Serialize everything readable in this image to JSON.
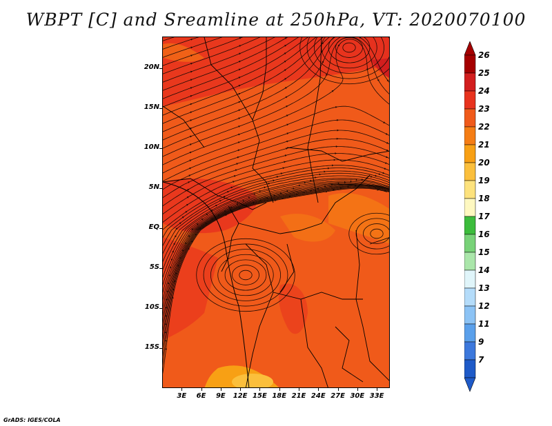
{
  "title": "WBPT [C] and Sreamline at 250hPa, VT: 2020070100",
  "footer": "GrADS: IGES/COLA",
  "map": {
    "lat_labels": [
      {
        "text": "20N",
        "lat": 20
      },
      {
        "text": "15N",
        "lat": 15
      },
      {
        "text": "10N",
        "lat": 10
      },
      {
        "text": "5N",
        "lat": 5
      },
      {
        "text": "EQ",
        "lat": 0
      },
      {
        "text": "5S",
        "lat": -5
      },
      {
        "text": "10S",
        "lat": -10
      },
      {
        "text": "15S",
        "lat": -15
      }
    ],
    "lon_labels": [
      {
        "text": "3E",
        "lon": 3
      },
      {
        "text": "6E",
        "lon": 6
      },
      {
        "text": "9E",
        "lon": 9
      },
      {
        "text": "12E",
        "lon": 12
      },
      {
        "text": "15E",
        "lon": 15
      },
      {
        "text": "18E",
        "lon": 18
      },
      {
        "text": "21E",
        "lon": 21
      },
      {
        "text": "24E",
        "lon": 24
      },
      {
        "text": "27E",
        "lon": 27
      },
      {
        "text": "30E",
        "lon": 30
      },
      {
        "text": "33E",
        "lon": 33
      }
    ],
    "dominant_fill_color": "#f05a1a"
  },
  "colorbar": {
    "labels": [
      "26",
      "25",
      "24",
      "23",
      "22",
      "21",
      "20",
      "19",
      "18",
      "17",
      "16",
      "15",
      "14",
      "13",
      "12",
      "11",
      "9",
      "7"
    ],
    "colors": [
      "#a50000",
      "#d21e1e",
      "#e8331e",
      "#f05a1a",
      "#f57d14",
      "#f8a014",
      "#fbbf3c",
      "#fde27d",
      "#fef8c0",
      "#3cbc3c",
      "#78d278",
      "#aae6aa",
      "#e0f5fa",
      "#b4dcfa",
      "#8cc3f5",
      "#5aa0eb",
      "#3c78dc",
      "#1e5ac8"
    ],
    "top_arrow_color": "#a50000",
    "bottom_arrow_color": "#1e5ac8"
  }
}
